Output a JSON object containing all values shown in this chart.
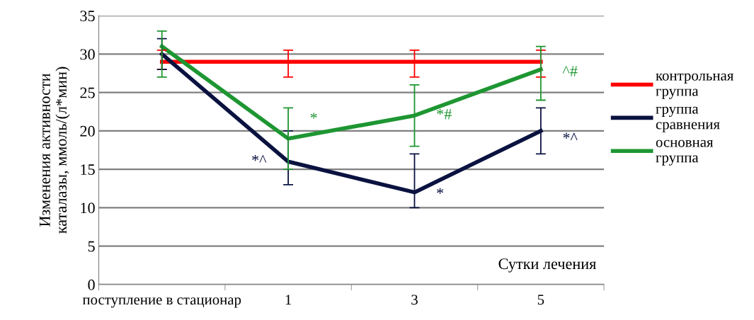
{
  "chart_data": {
    "type": "line",
    "xlabel": "Сутки лечения",
    "ylabel": "Изменения активности каталазы, ммоль/(л*мин)",
    "categories": [
      "поступление в стационар",
      "1",
      "3",
      "5"
    ],
    "series": [
      {
        "name": "контрольная группа",
        "color": "#ff0000",
        "values": [
          29,
          29,
          29,
          29
        ],
        "errors": [
          [
            28,
            30.5
          ],
          [
            27,
            30.5
          ],
          [
            27,
            30.5
          ],
          [
            27,
            30.5
          ]
        ]
      },
      {
        "name": "группа сравнения",
        "color": "#0a1240",
        "values": [
          30,
          16,
          12,
          20
        ],
        "errors": [
          [
            28,
            32
          ],
          [
            13,
            20
          ],
          [
            10,
            17
          ],
          [
            17,
            23
          ]
        ]
      },
      {
        "name": "основная группа",
        "color": "#1e9632",
        "values": [
          31,
          19,
          22,
          28
        ],
        "errors": [
          [
            27,
            33
          ],
          [
            15,
            23
          ],
          [
            18,
            26
          ],
          [
            24,
            31
          ]
        ]
      }
    ],
    "annotations": [
      {
        "text": "*^",
        "x": "1",
        "y": 16
      },
      {
        "text": "*",
        "x": "1",
        "y": 21.5
      },
      {
        "text": "*#",
        "x": "3",
        "y": 22
      },
      {
        "text": "*",
        "x": "3",
        "y": 11.7
      },
      {
        "text": "^#",
        "x": "5",
        "y": 27.6
      },
      {
        "text": "*^",
        "x": "5",
        "y": 18.9
      }
    ],
    "ylim": [
      0,
      35
    ],
    "yticks": [
      0,
      5,
      10,
      15,
      20,
      25,
      30,
      35
    ],
    "grid": "y",
    "legend": "right",
    "marker": "none",
    "line_style": "solid"
  }
}
